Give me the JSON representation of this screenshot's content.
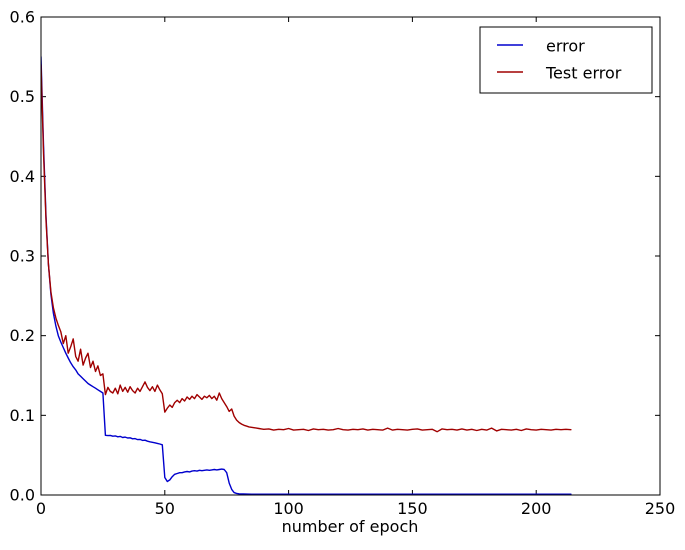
{
  "figure": {
    "background": "#ffffff",
    "frame_color": "#000000"
  },
  "chart_data": {
    "type": "line",
    "title": "",
    "xlabel": "number of epoch",
    "ylabel": "",
    "xlim": [
      0,
      250
    ],
    "ylim": [
      0.0,
      0.6
    ],
    "xticks": [
      0,
      50,
      100,
      150,
      200,
      250
    ],
    "xtick_labels": [
      "0",
      "50",
      "100",
      "150",
      "200",
      "250"
    ],
    "yticks": [
      0.0,
      0.1,
      0.2,
      0.3,
      0.4,
      0.5,
      0.6
    ],
    "ytick_labels": [
      "0.0",
      "0.1",
      "0.2",
      "0.3",
      "0.4",
      "0.5",
      "0.6"
    ],
    "grid": false,
    "legend": {
      "position": "upper right",
      "border_color": "#000000",
      "background": "#ffffff",
      "entries": [
        "error",
        "Test error"
      ]
    },
    "series": [
      {
        "name": "error",
        "color": "#0000cd",
        "points": [
          [
            0,
            0.55
          ],
          [
            1,
            0.44
          ],
          [
            2,
            0.35
          ],
          [
            3,
            0.29
          ],
          [
            4,
            0.252
          ],
          [
            5,
            0.228
          ],
          [
            6,
            0.212
          ],
          [
            7,
            0.2
          ],
          [
            8,
            0.192
          ],
          [
            9,
            0.185
          ],
          [
            10,
            0.178
          ],
          [
            11,
            0.172
          ],
          [
            12,
            0.166
          ],
          [
            13,
            0.161
          ],
          [
            14,
            0.157
          ],
          [
            15,
            0.152
          ],
          [
            16,
            0.149
          ],
          [
            17,
            0.146
          ],
          [
            18,
            0.143
          ],
          [
            19,
            0.14
          ],
          [
            20,
            0.138
          ],
          [
            21,
            0.136
          ],
          [
            22,
            0.134
          ],
          [
            23,
            0.132
          ],
          [
            24,
            0.13
          ],
          [
            25,
            0.128
          ],
          [
            26,
            0.075
          ],
          [
            27,
            0.0745
          ],
          [
            28,
            0.0748
          ],
          [
            29,
            0.0738
          ],
          [
            30,
            0.0742
          ],
          [
            31,
            0.073
          ],
          [
            32,
            0.0735
          ],
          [
            33,
            0.0722
          ],
          [
            34,
            0.0727
          ],
          [
            35,
            0.0715
          ],
          [
            36,
            0.0718
          ],
          [
            37,
            0.0705
          ],
          [
            38,
            0.0708
          ],
          [
            39,
            0.0695
          ],
          [
            40,
            0.0698
          ],
          [
            41,
            0.0685
          ],
          [
            42,
            0.0688
          ],
          [
            43,
            0.0675
          ],
          [
            44,
            0.0668
          ],
          [
            45,
            0.0662
          ],
          [
            46,
            0.0655
          ],
          [
            47,
            0.0648
          ],
          [
            48,
            0.064
          ],
          [
            49,
            0.063
          ],
          [
            50,
            0.022
          ],
          [
            51,
            0.017
          ],
          [
            52,
            0.019
          ],
          [
            53,
            0.023
          ],
          [
            54,
            0.026
          ],
          [
            55,
            0.027
          ],
          [
            56,
            0.028
          ],
          [
            57,
            0.028
          ],
          [
            58,
            0.029
          ],
          [
            59,
            0.0295
          ],
          [
            60,
            0.029
          ],
          [
            61,
            0.03
          ],
          [
            62,
            0.0305
          ],
          [
            63,
            0.03
          ],
          [
            64,
            0.031
          ],
          [
            65,
            0.0305
          ],
          [
            66,
            0.031
          ],
          [
            67,
            0.0315
          ],
          [
            68,
            0.031
          ],
          [
            69,
            0.0315
          ],
          [
            70,
            0.032
          ],
          [
            71,
            0.0315
          ],
          [
            72,
            0.032
          ],
          [
            73,
            0.0325
          ],
          [
            74,
            0.032
          ],
          [
            75,
            0.028
          ],
          [
            76,
            0.015
          ],
          [
            77,
            0.007
          ],
          [
            78,
            0.003
          ],
          [
            79,
            0.002
          ],
          [
            80,
            0.0015
          ],
          [
            85,
            0.001
          ],
          [
            90,
            0.001
          ],
          [
            100,
            0.001
          ],
          [
            120,
            0.001
          ],
          [
            140,
            0.001
          ],
          [
            160,
            0.001
          ],
          [
            180,
            0.001
          ],
          [
            200,
            0.001
          ],
          [
            214,
            0.001
          ]
        ]
      },
      {
        "name": "Test error",
        "color": "#a00000",
        "points": [
          [
            0,
            0.54
          ],
          [
            1,
            0.43
          ],
          [
            2,
            0.345
          ],
          [
            3,
            0.29
          ],
          [
            4,
            0.255
          ],
          [
            5,
            0.235
          ],
          [
            6,
            0.222
          ],
          [
            7,
            0.213
          ],
          [
            8,
            0.205
          ],
          [
            9,
            0.19
          ],
          [
            10,
            0.2
          ],
          [
            11,
            0.178
          ],
          [
            12,
            0.186
          ],
          [
            13,
            0.196
          ],
          [
            14,
            0.174
          ],
          [
            15,
            0.168
          ],
          [
            16,
            0.183
          ],
          [
            17,
            0.163
          ],
          [
            18,
            0.172
          ],
          [
            19,
            0.178
          ],
          [
            20,
            0.16
          ],
          [
            21,
            0.168
          ],
          [
            22,
            0.155
          ],
          [
            23,
            0.162
          ],
          [
            24,
            0.15
          ],
          [
            25,
            0.152
          ],
          [
            26,
            0.126
          ],
          [
            27,
            0.135
          ],
          [
            28,
            0.13
          ],
          [
            29,
            0.128
          ],
          [
            30,
            0.134
          ],
          [
            31,
            0.127
          ],
          [
            32,
            0.138
          ],
          [
            33,
            0.13
          ],
          [
            34,
            0.135
          ],
          [
            35,
            0.129
          ],
          [
            36,
            0.136
          ],
          [
            37,
            0.131
          ],
          [
            38,
            0.128
          ],
          [
            39,
            0.134
          ],
          [
            40,
            0.13
          ],
          [
            41,
            0.136
          ],
          [
            42,
            0.142
          ],
          [
            43,
            0.135
          ],
          [
            44,
            0.131
          ],
          [
            45,
            0.136
          ],
          [
            46,
            0.13
          ],
          [
            47,
            0.138
          ],
          [
            48,
            0.132
          ],
          [
            49,
            0.127
          ],
          [
            50,
            0.104
          ],
          [
            51,
            0.109
          ],
          [
            52,
            0.113
          ],
          [
            53,
            0.11
          ],
          [
            54,
            0.116
          ],
          [
            55,
            0.119
          ],
          [
            56,
            0.116
          ],
          [
            57,
            0.121
          ],
          [
            58,
            0.118
          ],
          [
            59,
            0.123
          ],
          [
            60,
            0.12
          ],
          [
            61,
            0.124
          ],
          [
            62,
            0.121
          ],
          [
            63,
            0.126
          ],
          [
            64,
            0.123
          ],
          [
            65,
            0.12
          ],
          [
            66,
            0.124
          ],
          [
            67,
            0.122
          ],
          [
            68,
            0.125
          ],
          [
            69,
            0.121
          ],
          [
            70,
            0.124
          ],
          [
            71,
            0.119
          ],
          [
            72,
            0.128
          ],
          [
            73,
            0.121
          ],
          [
            74,
            0.116
          ],
          [
            75,
            0.111
          ],
          [
            76,
            0.105
          ],
          [
            77,
            0.108
          ],
          [
            78,
            0.099
          ],
          [
            79,
            0.094
          ],
          [
            80,
            0.091
          ],
          [
            81,
            0.089
          ],
          [
            82,
            0.0875
          ],
          [
            83,
            0.0865
          ],
          [
            84,
            0.0855
          ],
          [
            85,
            0.085
          ],
          [
            86,
            0.0845
          ],
          [
            87,
            0.084
          ],
          [
            88,
            0.0835
          ],
          [
            89,
            0.083
          ],
          [
            90,
            0.0825
          ],
          [
            92,
            0.083
          ],
          [
            94,
            0.0815
          ],
          [
            96,
            0.0825
          ],
          [
            98,
            0.082
          ],
          [
            100,
            0.0835
          ],
          [
            102,
            0.0815
          ],
          [
            104,
            0.082
          ],
          [
            106,
            0.0825
          ],
          [
            108,
            0.081
          ],
          [
            110,
            0.083
          ],
          [
            112,
            0.082
          ],
          [
            114,
            0.0825
          ],
          [
            116,
            0.0815
          ],
          [
            118,
            0.082
          ],
          [
            120,
            0.0835
          ],
          [
            122,
            0.082
          ],
          [
            124,
            0.0815
          ],
          [
            126,
            0.0825
          ],
          [
            128,
            0.082
          ],
          [
            130,
            0.083
          ],
          [
            132,
            0.0815
          ],
          [
            134,
            0.0825
          ],
          [
            136,
            0.082
          ],
          [
            138,
            0.0815
          ],
          [
            140,
            0.084
          ],
          [
            142,
            0.0815
          ],
          [
            144,
            0.0825
          ],
          [
            146,
            0.082
          ],
          [
            148,
            0.0815
          ],
          [
            150,
            0.0825
          ],
          [
            152,
            0.083
          ],
          [
            154,
            0.0815
          ],
          [
            156,
            0.082
          ],
          [
            158,
            0.0825
          ],
          [
            160,
            0.0795
          ],
          [
            162,
            0.083
          ],
          [
            164,
            0.082
          ],
          [
            166,
            0.0825
          ],
          [
            168,
            0.0815
          ],
          [
            170,
            0.083
          ],
          [
            172,
            0.0815
          ],
          [
            174,
            0.0825
          ],
          [
            176,
            0.081
          ],
          [
            178,
            0.0825
          ],
          [
            180,
            0.0815
          ],
          [
            182,
            0.084
          ],
          [
            184,
            0.0805
          ],
          [
            186,
            0.0825
          ],
          [
            188,
            0.082
          ],
          [
            190,
            0.0815
          ],
          [
            192,
            0.0825
          ],
          [
            194,
            0.081
          ],
          [
            196,
            0.083
          ],
          [
            198,
            0.082
          ],
          [
            200,
            0.0815
          ],
          [
            202,
            0.0825
          ],
          [
            204,
            0.082
          ],
          [
            206,
            0.0815
          ],
          [
            208,
            0.0825
          ],
          [
            210,
            0.082
          ],
          [
            212,
            0.0825
          ],
          [
            214,
            0.082
          ]
        ]
      }
    ]
  }
}
